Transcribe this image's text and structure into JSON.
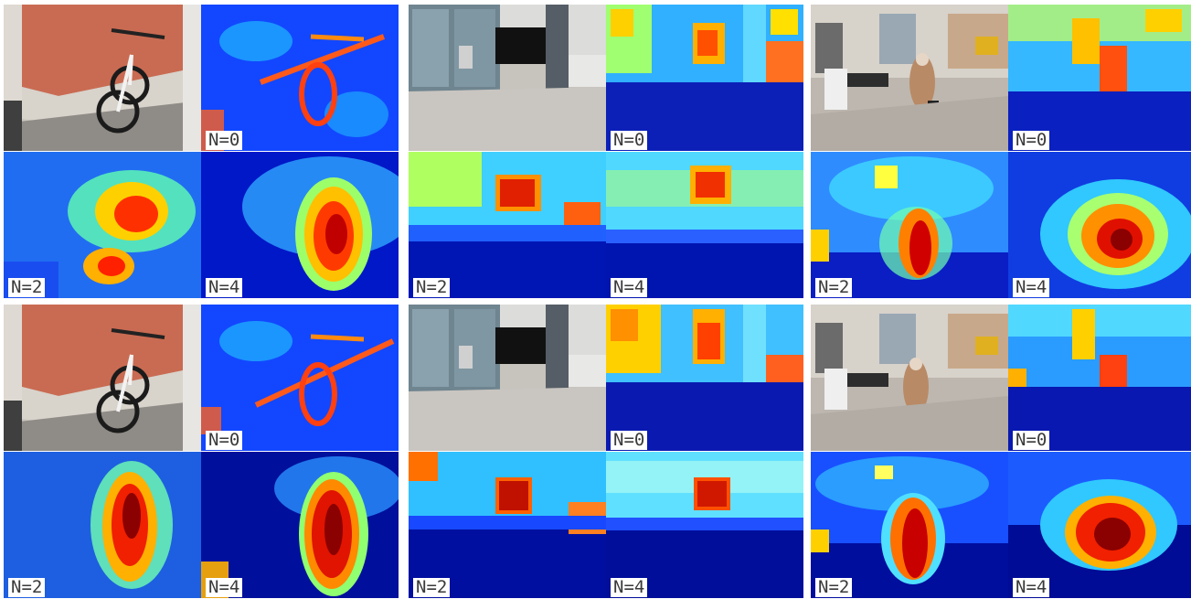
{
  "figure": {
    "groups": [
      {
        "row": 1,
        "scenes": [
          {
            "scene": "bicycle",
            "photo": "bicycle-photo",
            "labels": [
              "N=0",
              "N=2",
              "N=4"
            ]
          },
          {
            "scene": "plaza",
            "photo": "plaza-photo",
            "labels": [
              "N=0",
              "N=2",
              "N=4"
            ]
          },
          {
            "scene": "street",
            "photo": "street-photo",
            "labels": [
              "N=0",
              "N=2",
              "N=4"
            ]
          }
        ]
      },
      {
        "row": 2,
        "scenes": [
          {
            "scene": "bicycle",
            "photo": "bicycle-photo",
            "labels": [
              "N=0",
              "N=2",
              "N=4"
            ]
          },
          {
            "scene": "plaza",
            "photo": "plaza-photo",
            "labels": [
              "N=0",
              "N=2",
              "N=4"
            ]
          },
          {
            "scene": "street",
            "photo": "street-photo",
            "labels": [
              "N=0",
              "N=2",
              "N=4"
            ]
          }
        ]
      }
    ],
    "colormap": [
      "#00008b",
      "#0000ff",
      "#0080ff",
      "#00ffff",
      "#80ff80",
      "#ffff00",
      "#ff8000",
      "#ff0000",
      "#8b0000"
    ]
  }
}
